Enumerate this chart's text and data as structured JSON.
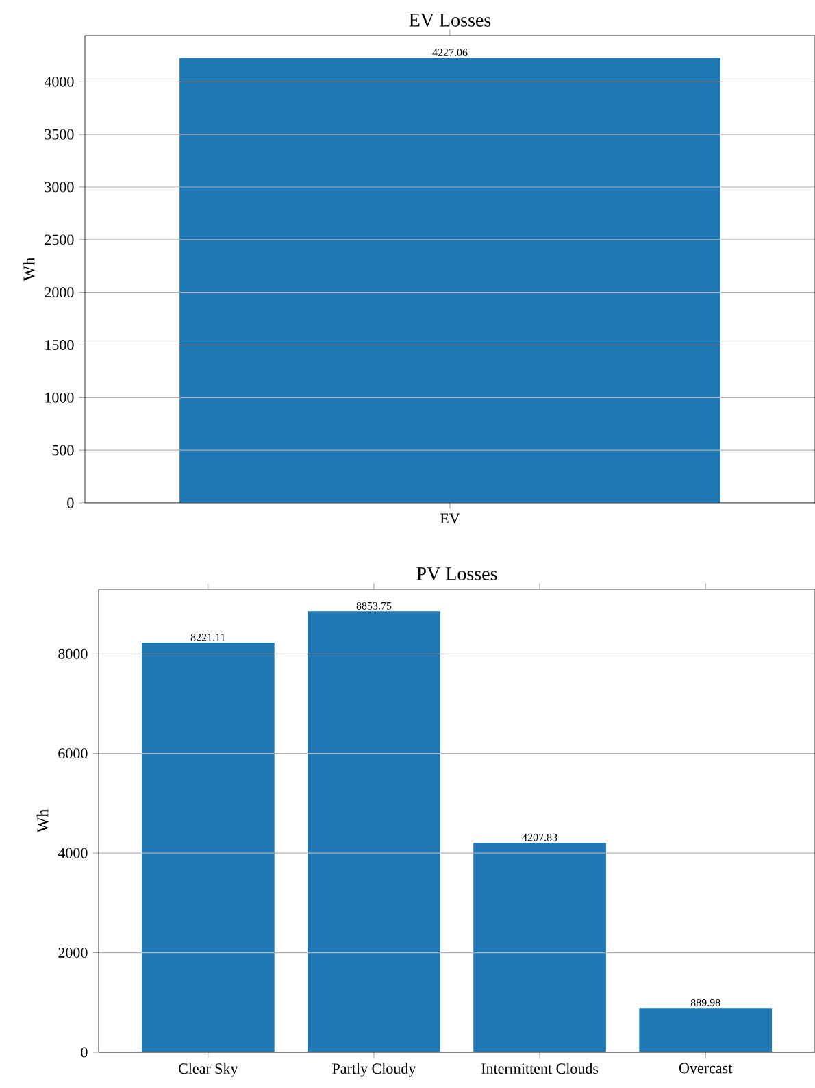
{
  "chart_data": [
    {
      "type": "bar",
      "title": "EV Losses",
      "ylabel": "Wh",
      "categories": [
        "EV"
      ],
      "values": [
        4227.06
      ],
      "color": "#1f77b4",
      "ylim": [
        0,
        4438.4
      ],
      "yticks": [
        0,
        500,
        1000,
        1500,
        2000,
        2500,
        3000,
        3500,
        4000
      ],
      "grid": "y",
      "data_labels": true
    },
    {
      "type": "bar",
      "title": "PV Losses",
      "ylabel": "Wh",
      "categories": [
        "Clear Sky",
        "Partly Cloudy",
        "Intermittent Clouds",
        "Overcast"
      ],
      "values": [
        8221.11,
        8853.75,
        4207.83,
        889.98
      ],
      "color": "#1f77b4",
      "ylim": [
        0,
        9296.4
      ],
      "yticks": [
        0,
        2000,
        4000,
        6000,
        8000
      ],
      "grid": "y",
      "data_labels": true
    }
  ]
}
